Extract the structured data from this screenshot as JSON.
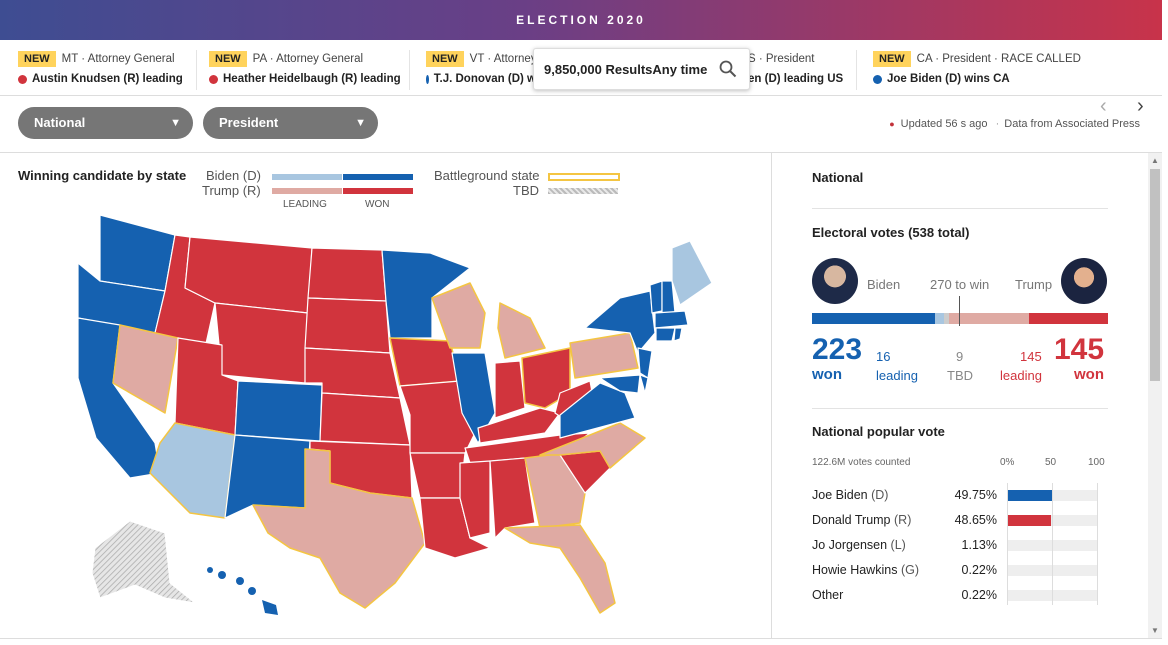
{
  "banner": {
    "title": "ELECTION 2020"
  },
  "ticker": [
    {
      "badge": "NEW",
      "race": "MT · Attorney General",
      "result": "Austin Knudsen (R) leading",
      "party": "r"
    },
    {
      "badge": "NEW",
      "race": "PA · Attorney General",
      "result": "Heather Heidelbaugh (R) leading",
      "party": "r"
    },
    {
      "badge": "NEW",
      "race": "VT · Attorney",
      "result": "T.J. Donovan (D) w",
      "party": "b"
    },
    {
      "badge": "",
      "race": "S · President",
      "result": "en (D) leading US",
      "party": ""
    },
    {
      "badge": "NEW",
      "race": "CA · President · RACE CALLED",
      "result": "Joe Biden (D) wins CA",
      "party": "b"
    }
  ],
  "search": {
    "text": "9,850,000 ResultsAny time",
    "icon": "search-icon"
  },
  "nav": {
    "prev": "‹",
    "next": "›"
  },
  "filters": {
    "region": "National",
    "race": "President"
  },
  "status": {
    "updated": "Updated 56 s ago",
    "source": "Data from Associated Press"
  },
  "legend": {
    "title": "Winning candidate by state",
    "biden": "Biden (D)",
    "trump": "Trump (R)",
    "leading": "LEADING",
    "won": "WON",
    "battleground": "Battleground state",
    "tbd": "TBD"
  },
  "colors": {
    "dem_won": "#1561b0",
    "dem_lead": "#a8c6e0",
    "rep_won": "#d1343d",
    "rep_lead": "#dfaaa3",
    "tbd": "#cccccc",
    "battleground": "#f4c542"
  },
  "side": {
    "region": "National",
    "ev_title": "Electoral votes (538 total)",
    "biden": "Biden",
    "trump": "Trump",
    "to_win": "270 to win",
    "biden_won": "223",
    "biden_lead": "16",
    "tbd": "9",
    "trump_lead": "145",
    "trump_won": "145",
    "won_lbl": "won",
    "leading_lbl": "leading",
    "tbd_lbl": "TBD",
    "pv_title": "National popular vote",
    "votes_counted": "122.6M votes counted",
    "axis": [
      "0%",
      "50",
      "100"
    ],
    "candidates": [
      {
        "name": "Joe Biden",
        "party": "(D)",
        "pct": "49.75%",
        "value": 49.75,
        "color": "#1561b0"
      },
      {
        "name": "Donald Trump",
        "party": "(R)",
        "pct": "48.65%",
        "value": 48.65,
        "color": "#d1343d"
      },
      {
        "name": "Jo Jorgensen",
        "party": "(L)",
        "pct": "1.13%",
        "value": 1.13,
        "color": "#888"
      },
      {
        "name": "Howie Hawkins",
        "party": "(G)",
        "pct": "0.22%",
        "value": 0.22,
        "color": "#888"
      },
      {
        "name": "Other",
        "party": "",
        "pct": "0.22%",
        "value": 0.22,
        "color": "#888"
      }
    ]
  }
}
